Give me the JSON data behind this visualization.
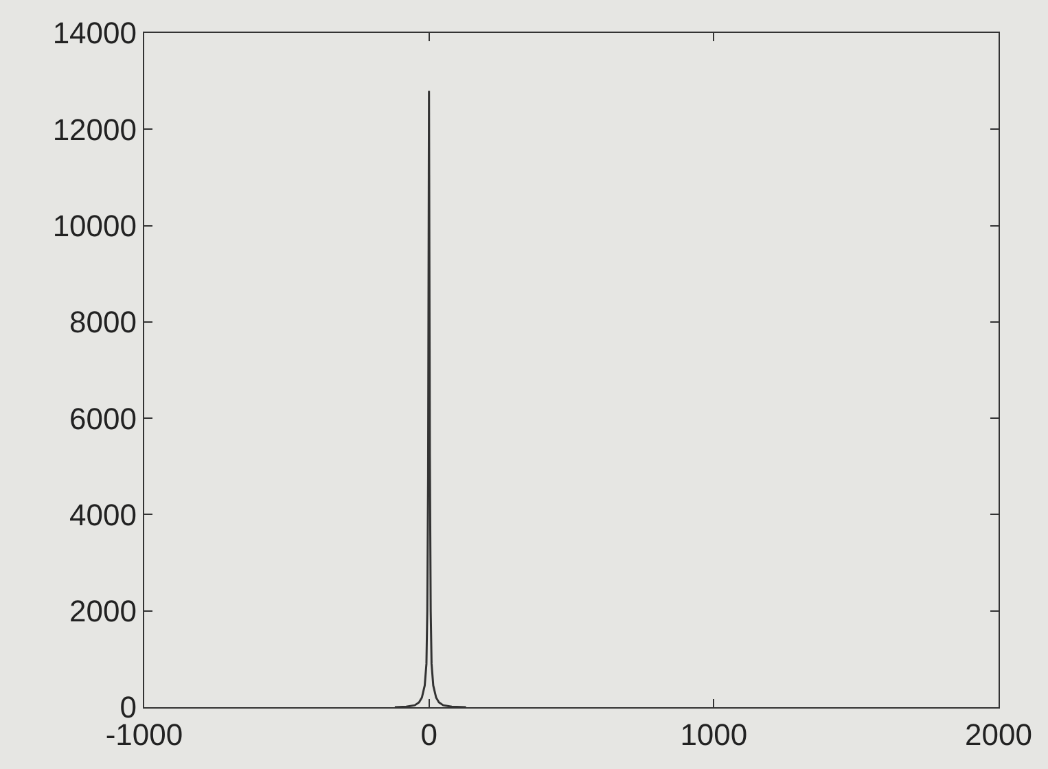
{
  "chart_data": {
    "type": "line",
    "x": [
      -120,
      -80,
      -50,
      -35,
      -25,
      -15,
      -9,
      -6,
      -3,
      0,
      3,
      6,
      9,
      15,
      25,
      35,
      50,
      80,
      130
    ],
    "series": [
      {
        "color": "#333333",
        "values": [
          0,
          10,
          40,
          100,
          200,
          450,
          900,
          2000,
          4800,
          12800,
          5200,
          2000,
          900,
          450,
          200,
          100,
          40,
          10,
          0
        ]
      }
    ],
    "xlim": [
      -1000,
      2000
    ],
    "xticks": [
      -1000,
      0,
      1000,
      2000
    ],
    "ylim": [
      0,
      14000
    ],
    "yticks": [
      0,
      2000,
      4000,
      6000,
      8000,
      10000,
      12000,
      14000
    ],
    "grid": false,
    "marker": "none",
    "line_style": "solid"
  }
}
